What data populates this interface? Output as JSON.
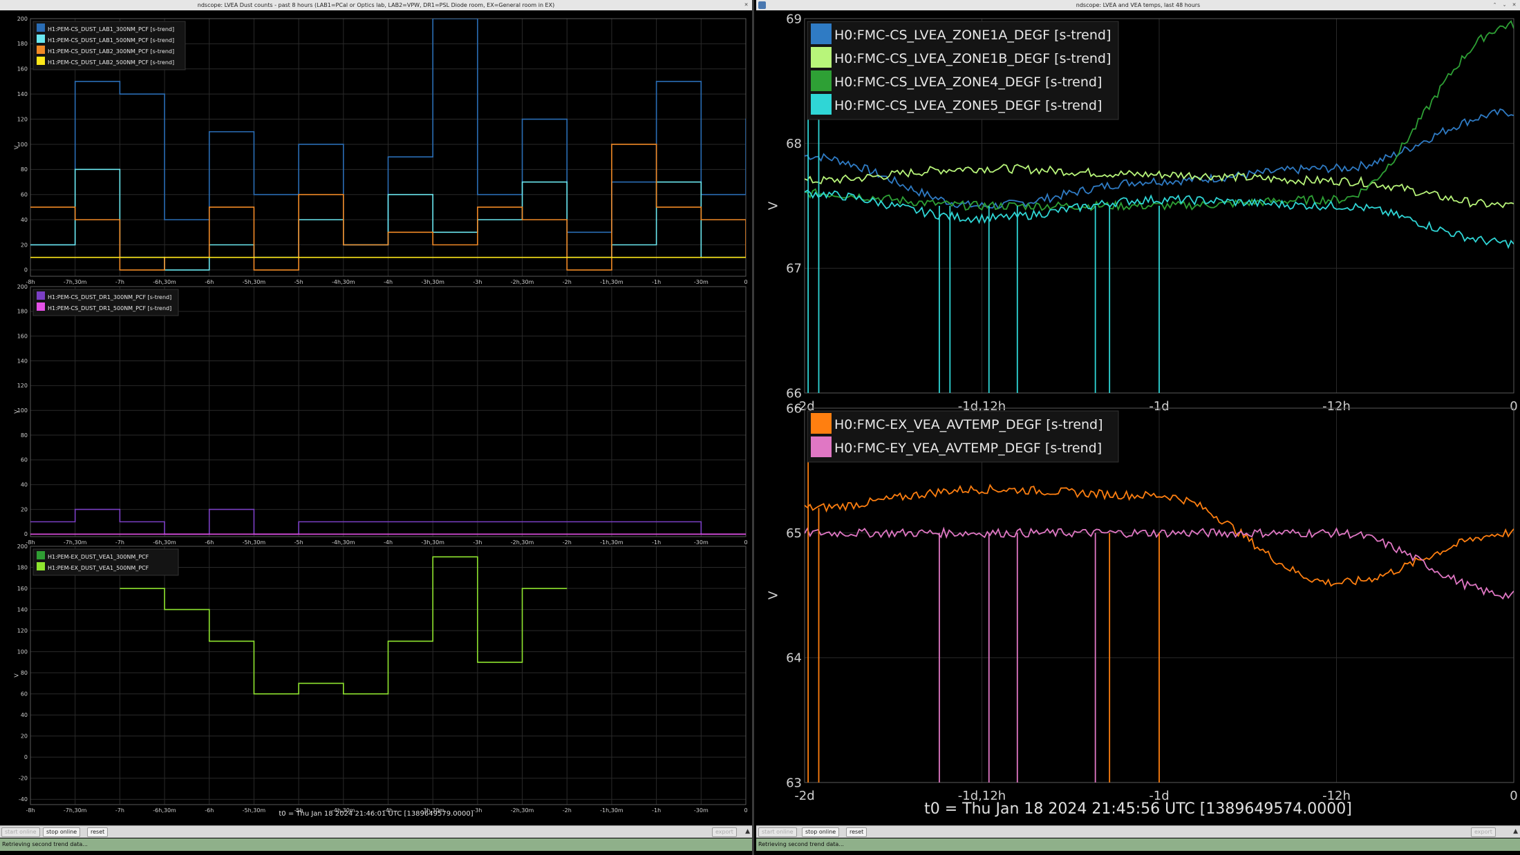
{
  "left": {
    "title": "ndscope: LVEA Dust counts - past 8 hours (LAB1=PCal or Optics lab, LAB2=VPW, DR1=PSL Diode room, EX=General room in EX)",
    "t0": "t0 = Thu Jan 18 2024 21:46:01 UTC [1389649579.0000]",
    "xticks": [
      "-8h",
      "-7h,30m",
      "-7h",
      "-6h,30m",
      "-6h",
      "-5h,30m",
      "-5h",
      "-4h,30m",
      "-4h",
      "-3h,30m",
      "-3h",
      "-2h,30m",
      "-2h",
      "-1h,30m",
      "-1h",
      "-30m",
      "0"
    ],
    "buttons": {
      "start": "start online",
      "stop": "stop online",
      "reset": "reset",
      "export": "export"
    },
    "status": "Retrieving second trend data..."
  },
  "right": {
    "title": "ndscope: LVEA and VEA temps, last 48 hours",
    "t0": "t0 = Thu Jan 18 2024 21:45:56 UTC [1389649574.0000]",
    "xticks": [
      "-2d",
      "-1d,12h",
      "-1d",
      "-12h",
      "0"
    ],
    "buttons": {
      "start": "start online",
      "stop": "stop online",
      "reset": "reset",
      "export": "export"
    },
    "status": "Retrieving second trend data..."
  },
  "chart_data": [
    {
      "type": "line",
      "ylabel": "V",
      "ylim": [
        -5,
        200
      ],
      "yticks": [
        "200",
        "180",
        "160",
        "140",
        "120",
        "100",
        "80",
        "60",
        "40",
        "20",
        "0"
      ],
      "x": [
        "-8h",
        "-7h,30m",
        "-7h",
        "-6h,30m",
        "-6h",
        "-5h,30m",
        "-5h",
        "-4h,30m",
        "-4h",
        "-3h,30m",
        "-3h",
        "-2h,30m",
        "-2h",
        "-1h,30m",
        "-1h",
        "-30m",
        "0"
      ],
      "series": [
        {
          "name": "H1:PEM-CS_DUST_LAB1_300NM_PCF [s-trend]",
          "color": "#2a6db5",
          "values": [
            20,
            150,
            140,
            40,
            110,
            60,
            100,
            20,
            90,
            200,
            60,
            120,
            30,
            70,
            150,
            60,
            120
          ]
        },
        {
          "name": "H1:PEM-CS_DUST_LAB1_500NM_PCF [s-trend]",
          "color": "#6be8f0",
          "values": [
            20,
            80,
            10,
            0,
            20,
            10,
            40,
            20,
            60,
            30,
            40,
            70,
            10,
            20,
            70,
            10,
            10
          ]
        },
        {
          "name": "H1:PEM-CS_DUST_LAB2_300NM_PCF [s-trend]",
          "color": "#f28a26",
          "values": [
            50,
            40,
            0,
            10,
            50,
            0,
            60,
            20,
            30,
            20,
            50,
            40,
            0,
            100,
            50,
            40,
            10
          ]
        },
        {
          "name": "H1:PEM-CS_DUST_LAB2_500NM_PCF [s-trend]",
          "color": "#ffe81a",
          "values": [
            10,
            10,
            10,
            10,
            10,
            10,
            10,
            10,
            10,
            10,
            10,
            10,
            10,
            10,
            10,
            10,
            10
          ]
        }
      ]
    },
    {
      "type": "line",
      "ylabel": "V",
      "ylim": [
        -2,
        200
      ],
      "yticks": [
        "200",
        "180",
        "160",
        "140",
        "120",
        "100",
        "80",
        "60",
        "40",
        "20",
        "0"
      ],
      "x": [
        "-8h",
        "-7h,30m",
        "-7h",
        "-6h,30m",
        "-6h",
        "-5h,30m",
        "-5h",
        "-4h,30m",
        "-4h",
        "-3h,30m",
        "-3h",
        "-2h,30m",
        "-2h",
        "-1h,30m",
        "-1h",
        "-30m",
        "0"
      ],
      "series": [
        {
          "name": "H1:PEM-CS_DUST_DR1_300NM_PCF [s-trend]",
          "color": "#7b3fc4",
          "values": [
            10,
            20,
            10,
            0,
            20,
            0,
            10,
            10,
            10,
            10,
            10,
            10,
            10,
            10,
            10,
            0,
            0
          ]
        },
        {
          "name": "H1:PEM-CS_DUST_DR1_500NM_PCF [s-trend]",
          "color": "#e451e6",
          "values": [
            0,
            0,
            0,
            0,
            0,
            0,
            0,
            0,
            0,
            0,
            0,
            0,
            0,
            0,
            0,
            0,
            0
          ]
        }
      ]
    },
    {
      "type": "line",
      "ylabel": "V",
      "ylim": [
        -45,
        200
      ],
      "yticks": [
        "200",
        "180",
        "160",
        "140",
        "120",
        "100",
        "80",
        "60",
        "40",
        "20",
        "0",
        "-20",
        "-40"
      ],
      "x": [
        "-8h",
        "-7h,30m",
        "-7h",
        "-6h,30m",
        "-6h",
        "-5h,30m",
        "-5h",
        "-4h,30m",
        "-4h",
        "-3h,30m",
        "-3h",
        "-2h,30m"
      ],
      "series": [
        {
          "name": "H1:PEM-EX_DUST_VEA1_300NM_PCF",
          "color": "#2f9e33",
          "values": [
            null,
            null,
            null,
            null,
            null,
            null,
            null,
            null,
            null,
            null,
            null,
            null
          ]
        },
        {
          "name": "H1:PEM-EX_DUST_VEA1_500NM_PCF",
          "color": "#8fe52f",
          "values": [
            null,
            null,
            160,
            140,
            110,
            60,
            70,
            60,
            110,
            190,
            90,
            160
          ]
        }
      ]
    },
    {
      "type": "line",
      "ylabel": "V",
      "ylim": [
        66,
        69
      ],
      "yticks": [
        "69",
        "68",
        "67",
        "66"
      ],
      "x": [
        "-2d",
        "-1d,12h",
        "-1d",
        "-12h",
        "0"
      ],
      "series": [
        {
          "name": "H0:FMC-CS_LVEA_ZONE1A_DEGF [s-trend]",
          "color": "#2f7bc4",
          "values": [
            67.9,
            67.5,
            67.7,
            67.8,
            68.25
          ]
        },
        {
          "name": "H0:FMC-CS_LVEA_ZONE1B_DEGF [s-trend]",
          "color": "#b8f57a",
          "values": [
            67.7,
            67.8,
            67.75,
            67.7,
            67.5
          ]
        },
        {
          "name": "H0:FMC-CS_LVEA_ZONE4_DEGF [s-trend]",
          "color": "#2ea035",
          "values": [
            67.6,
            67.5,
            67.5,
            67.55,
            68.95
          ]
        },
        {
          "name": "H0:FMC-CS_LVEA_ZONE5_DEGF [s-trend]",
          "color": "#2fd6d6",
          "values": [
            67.6,
            67.4,
            67.55,
            67.5,
            67.2
          ]
        }
      ]
    },
    {
      "type": "line",
      "ylabel": "V",
      "ylim": [
        63,
        66
      ],
      "yticks": [
        "66",
        "65",
        "64",
        "63"
      ],
      "x": [
        "-2d",
        "-1d,12h",
        "-1d",
        "-12h",
        "0"
      ],
      "series": [
        {
          "name": "H0:FMC-EX_VEA_AVTEMP_DEGF [s-trend]",
          "color": "#ff7f10",
          "values": [
            65.2,
            65.35,
            65.3,
            64.6,
            65.0
          ]
        },
        {
          "name": "H0:FMC-EY_VEA_AVTEMP_DEGF [s-trend]",
          "color": "#e077c4",
          "values": [
            65.0,
            65.0,
            65.0,
            65.0,
            64.5
          ]
        }
      ]
    }
  ]
}
